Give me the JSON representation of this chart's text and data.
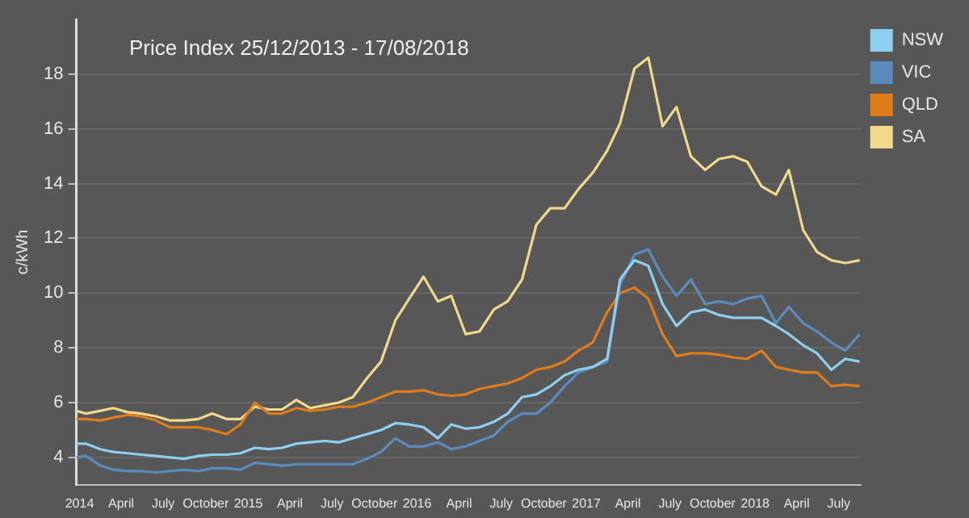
{
  "chart_data": {
    "type": "line",
    "title": "Price Index 25/12/2013 - 17/08/2018",
    "ylabel": "c/kWh",
    "x": [
      "2013-12-25",
      "2014-01-15",
      "2014-02-15",
      "2014-03-15",
      "2014-04-15",
      "2014-05-15",
      "2014-06-15",
      "2014-07-15",
      "2014-08-15",
      "2014-09-15",
      "2014-10-15",
      "2014-11-15",
      "2014-12-15",
      "2015-01-15",
      "2015-02-15",
      "2015-03-15",
      "2015-04-15",
      "2015-05-15",
      "2015-06-15",
      "2015-07-15",
      "2015-08-15",
      "2015-09-15",
      "2015-10-15",
      "2015-11-15",
      "2015-12-15",
      "2016-01-15",
      "2016-02-15",
      "2016-03-15",
      "2016-04-15",
      "2016-05-15",
      "2016-06-15",
      "2016-07-15",
      "2016-08-15",
      "2016-09-15",
      "2016-10-15",
      "2016-11-15",
      "2016-12-15",
      "2017-01-15",
      "2017-02-15",
      "2017-03-15",
      "2017-04-15",
      "2017-05-15",
      "2017-06-15",
      "2017-07-15",
      "2017-08-15",
      "2017-09-15",
      "2017-10-15",
      "2017-11-15",
      "2017-12-15",
      "2018-01-15",
      "2018-02-15",
      "2018-03-15",
      "2018-04-15",
      "2018-05-15",
      "2018-06-15",
      "2018-07-15",
      "2018-08-15"
    ],
    "series": [
      {
        "name": "NSW",
        "color": "#8ecfef",
        "values": [
          4.5,
          4.5,
          4.3,
          4.2,
          4.15,
          4.1,
          4.05,
          4.0,
          3.95,
          4.05,
          4.1,
          4.1,
          4.15,
          4.35,
          4.3,
          4.35,
          4.5,
          4.55,
          4.6,
          4.55,
          4.7,
          4.85,
          5.0,
          5.25,
          5.2,
          5.1,
          4.7,
          5.2,
          5.05,
          5.1,
          5.3,
          5.6,
          6.2,
          6.3,
          6.6,
          7.0,
          7.2,
          7.3,
          7.6,
          10.5,
          11.2,
          11.0,
          9.6,
          8.8,
          9.3,
          9.4,
          9.2,
          9.1,
          9.1,
          9.1,
          8.8,
          8.5,
          8.1,
          7.8,
          7.2,
          7.6,
          7.5
        ]
      },
      {
        "name": "VIC",
        "color": "#5b8bbd",
        "values": [
          4.0,
          4.05,
          3.7,
          3.55,
          3.5,
          3.5,
          3.45,
          3.5,
          3.55,
          3.5,
          3.6,
          3.6,
          3.55,
          3.8,
          3.75,
          3.7,
          3.75,
          3.75,
          3.75,
          3.75,
          3.75,
          3.95,
          4.2,
          4.7,
          4.4,
          4.4,
          4.55,
          4.3,
          4.4,
          4.6,
          4.8,
          5.3,
          5.6,
          5.6,
          6.0,
          6.6,
          7.1,
          7.3,
          7.5,
          10.3,
          11.4,
          11.6,
          10.6,
          9.9,
          10.5,
          9.6,
          9.7,
          9.6,
          9.8,
          9.9,
          8.9,
          9.5,
          8.9,
          8.6,
          8.2,
          7.9,
          8.5
        ]
      },
      {
        "name": "QLD",
        "color": "#e07b1a",
        "values": [
          5.4,
          5.4,
          5.35,
          5.45,
          5.55,
          5.5,
          5.35,
          5.1,
          5.1,
          5.1,
          5.0,
          4.85,
          5.2,
          6.0,
          5.6,
          5.6,
          5.8,
          5.7,
          5.75,
          5.85,
          5.85,
          6.0,
          6.2,
          6.4,
          6.4,
          6.45,
          6.3,
          6.25,
          6.3,
          6.5,
          6.6,
          6.7,
          6.9,
          7.2,
          7.3,
          7.5,
          7.9,
          8.2,
          9.3,
          10.0,
          10.2,
          9.8,
          8.5,
          7.7,
          7.8,
          7.8,
          7.75,
          7.65,
          7.6,
          7.9,
          7.3,
          7.2,
          7.1,
          7.1,
          6.6,
          6.65,
          6.6
        ]
      },
      {
        "name": "SA",
        "color": "#f0d98a",
        "values": [
          5.7,
          5.6,
          5.7,
          5.8,
          5.65,
          5.6,
          5.5,
          5.35,
          5.35,
          5.4,
          5.6,
          5.4,
          5.4,
          5.85,
          5.75,
          5.75,
          6.1,
          5.8,
          5.9,
          6.0,
          6.2,
          6.9,
          7.5,
          9.0,
          9.8,
          10.6,
          9.7,
          9.9,
          8.5,
          8.6,
          9.4,
          9.7,
          10.5,
          12.5,
          13.1,
          13.1,
          13.8,
          14.4,
          15.2,
          16.2,
          18.2,
          18.6,
          16.1,
          16.8,
          15.0,
          14.5,
          14.9,
          15.0,
          14.8,
          13.9,
          13.6,
          14.5,
          12.3,
          11.5,
          11.2,
          11.1,
          11.2
        ]
      }
    ],
    "xlim": [
      "2013-12-25",
      "2018-08-17"
    ],
    "xticks": [
      {
        "value": "2014-01-01",
        "label": "2014"
      },
      {
        "value": "2014-04-01",
        "label": "April"
      },
      {
        "value": "2014-07-01",
        "label": "July"
      },
      {
        "value": "2014-10-01",
        "label": "October"
      },
      {
        "value": "2015-01-01",
        "label": "2015"
      },
      {
        "value": "2015-04-01",
        "label": "April"
      },
      {
        "value": "2015-07-01",
        "label": "July"
      },
      {
        "value": "2015-10-01",
        "label": "October"
      },
      {
        "value": "2016-01-01",
        "label": "2016"
      },
      {
        "value": "2016-04-01",
        "label": "April"
      },
      {
        "value": "2016-07-01",
        "label": "July"
      },
      {
        "value": "2016-10-01",
        "label": "October"
      },
      {
        "value": "2017-01-01",
        "label": "2017"
      },
      {
        "value": "2017-04-01",
        "label": "April"
      },
      {
        "value": "2017-07-01",
        "label": "July"
      },
      {
        "value": "2017-10-01",
        "label": "October"
      },
      {
        "value": "2018-01-01",
        "label": "2018"
      },
      {
        "value": "2018-04-01",
        "label": "April"
      },
      {
        "value": "2018-07-01",
        "label": "July"
      }
    ],
    "ylim": [
      3,
      20
    ],
    "yticks": [
      4,
      6,
      8,
      10,
      12,
      14,
      16,
      18
    ],
    "grid": "y",
    "legend": "top right",
    "marker": "none",
    "line_style": "solid"
  }
}
